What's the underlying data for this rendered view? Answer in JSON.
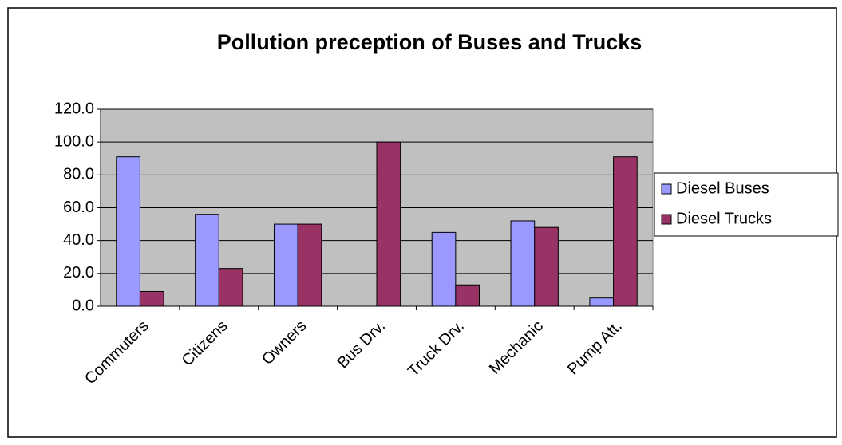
{
  "chart_data": {
    "type": "bar",
    "title": "Pollution preception of Buses and Trucks",
    "categories": [
      "Commuters",
      "Citizens",
      "Owners",
      "Bus Drv.",
      "Truck Drv.",
      "Mechanic",
      "Pump Att."
    ],
    "series": [
      {
        "name": "Diesel Buses",
        "color": "#9999ff",
        "values": [
          91,
          56,
          50,
          0,
          45,
          52,
          5
        ]
      },
      {
        "name": "Diesel Trucks",
        "color": "#993366",
        "values": [
          9,
          23,
          50,
          100,
          13,
          48,
          91
        ]
      }
    ],
    "ylim": [
      0,
      120
    ],
    "yticks": [
      {
        "value": 0,
        "label": "0.0"
      },
      {
        "value": 20,
        "label": "20.0"
      },
      {
        "value": 40,
        "label": "40.0"
      },
      {
        "value": 60,
        "label": "60.0"
      },
      {
        "value": 80,
        "label": "80.0"
      },
      {
        "value": 100,
        "label": "100.0"
      },
      {
        "value": 120,
        "label": "120.0"
      }
    ],
    "grid": true,
    "legend": "right"
  }
}
